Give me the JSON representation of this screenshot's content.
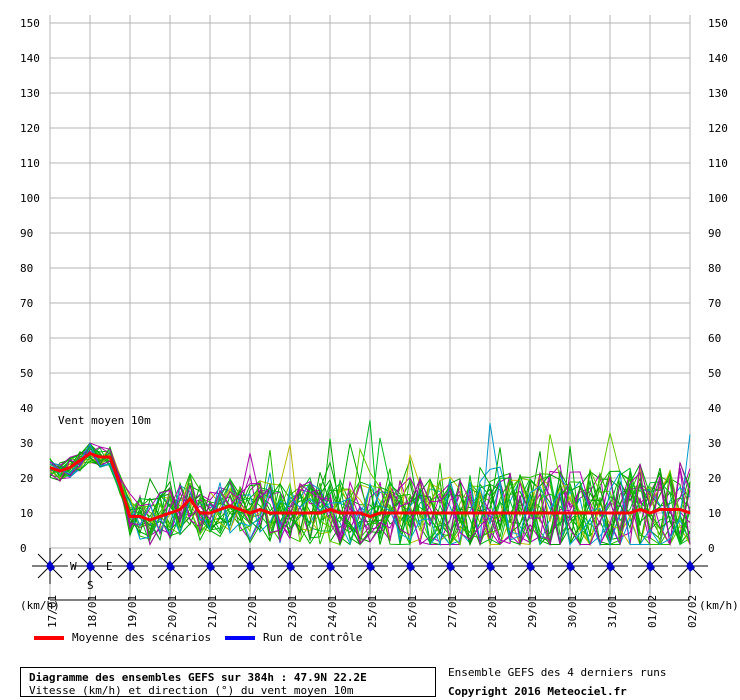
{
  "chart_data": {
    "type": "line",
    "chart_label": "Vent moyen 10m",
    "ylim": [
      0,
      150
    ],
    "yticks": [
      0,
      10,
      20,
      30,
      40,
      50,
      60,
      70,
      80,
      90,
      100,
      110,
      120,
      130,
      140,
      150
    ],
    "x_unit_left": "(km/h)",
    "x_unit_right": "(km/h)",
    "dates": [
      "17/01",
      "18/01",
      "19/01",
      "20/01",
      "21/01",
      "22/01",
      "23/01",
      "24/01",
      "25/01",
      "26/01",
      "27/01",
      "28/01",
      "29/01",
      "30/01",
      "31/01",
      "01/02",
      "02/02"
    ],
    "legend": [
      {
        "name": "Moyenne des scénarios",
        "color": "#ff0000"
      },
      {
        "name": "Run de contrôle",
        "color": "#0000ff"
      }
    ],
    "mean_series": [
      23,
      22,
      23,
      25,
      27,
      26,
      26,
      18,
      9,
      9,
      8,
      9,
      10,
      11,
      14,
      10,
      10,
      11,
      12,
      11,
      10,
      11,
      10,
      10,
      10,
      10,
      10,
      10,
      11,
      10,
      10,
      10,
      9,
      10,
      10,
      10,
      10,
      10,
      10,
      10,
      10,
      10,
      10,
      10,
      10,
      10,
      10,
      10,
      10,
      10,
      10,
      10,
      10,
      10,
      10,
      10,
      10,
      10,
      10,
      11,
      10,
      11,
      11,
      11,
      10
    ],
    "compass": {
      "w": "W",
      "e": "E",
      "s": "S"
    }
  },
  "title_box": {
    "line1": "Diagramme des ensembles GEFS sur 384h : 47.9N 22.2E",
    "line2": "Vitesse (km/h) et direction (°) du vent moyen 10m"
  },
  "info": {
    "line1": "Ensemble GEFS des 4 derniers runs",
    "line2": "Copyright 2016 Meteociel.fr"
  }
}
